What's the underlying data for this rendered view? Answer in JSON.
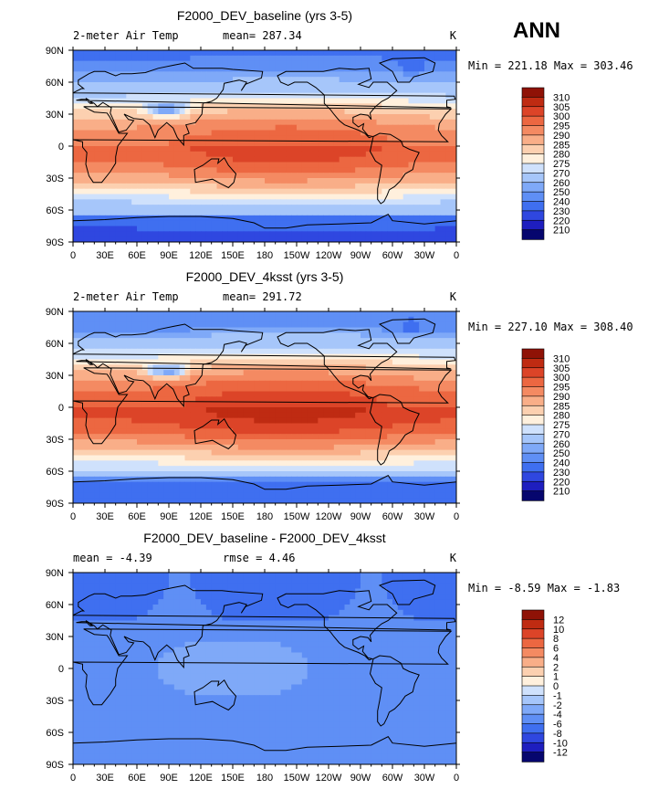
{
  "season": "ANN",
  "panels": [
    {
      "title": "F2000_DEV_baseline (yrs 3-5)",
      "left_label": "2-meter Air Temp",
      "center_label": "mean= 287.34",
      "units": "K",
      "minmax": "Min = 221.18 Max = 303.46",
      "colorbar_ticks": [
        "310",
        "305",
        "300",
        "295",
        "290",
        "285",
        "280",
        "275",
        "270",
        "260",
        "250",
        "240",
        "230",
        "220",
        "210"
      ],
      "field": "baseline"
    },
    {
      "title": "F2000_DEV_4ksst (yrs 3-5)",
      "left_label": "2-meter Air Temp",
      "center_label": "mean= 291.72",
      "units": "K",
      "minmax": "Min = 227.10 Max = 308.40",
      "colorbar_ticks": [
        "310",
        "305",
        "300",
        "295",
        "290",
        "285",
        "280",
        "275",
        "270",
        "260",
        "250",
        "240",
        "230",
        "220",
        "210"
      ],
      "field": "4ksst"
    },
    {
      "title": "F2000_DEV_baseline - F2000_DEV_4ksst",
      "left_label": "mean =   -4.39",
      "center_label": "rmse =    4.46",
      "units": "K",
      "minmax": "Min =   -8.59 Max =   -1.83",
      "colorbar_ticks": [
        "12",
        "10",
        "8",
        "6",
        "4",
        "2",
        "1",
        "0",
        "-1",
        "-2",
        "-4",
        "-6",
        "-8",
        "-10",
        "-12"
      ],
      "field": "diff"
    }
  ],
  "colors": {
    "abs_levels": [
      "#06066e",
      "#1e1ebf",
      "#2f47e0",
      "#3f6ff0",
      "#5f8ff5",
      "#7fa9f8",
      "#a6c6fa",
      "#cfe1fc",
      "#fff0dd",
      "#fcd0b0",
      "#f9ae88",
      "#f48a62",
      "#ec6741",
      "#dc4428",
      "#bf2b12",
      "#8f1206"
    ],
    "diff_levels": [
      "#06066e",
      "#1e1ebf",
      "#2f47e0",
      "#3f6ff0",
      "#5f8ff5",
      "#7fa9f8",
      "#a6c6fa",
      "#cfe1fc",
      "#fff0dd",
      "#fcd0b0",
      "#f9ae88",
      "#f48a62",
      "#ec6741",
      "#dc4428",
      "#bf2b12",
      "#8f1206"
    ],
    "coastline": "#000000"
  },
  "chart_data": {
    "type": "heatmap",
    "title": "2-meter Air Temp (K), annual mean",
    "season": "ANN",
    "x_ticks": [
      "0",
      "30E",
      "60E",
      "90E",
      "120E",
      "150E",
      "180",
      "150W",
      "120W",
      "90W",
      "60W",
      "30W",
      "0"
    ],
    "y_ticks": [
      "90N",
      "60N",
      "30N",
      "0",
      "30S",
      "60S",
      "90S"
    ],
    "xlim": [
      0,
      360
    ],
    "ylim": [
      -90,
      90
    ],
    "series": [
      {
        "name": "F2000_DEV_baseline (yrs 3-5)",
        "mean": 287.34,
        "min": 221.18,
        "max": 303.46,
        "levels": [
          210,
          220,
          230,
          240,
          250,
          260,
          270,
          275,
          280,
          285,
          290,
          295,
          300,
          305,
          310
        ]
      },
      {
        "name": "F2000_DEV_4ksst (yrs 3-5)",
        "mean": 291.72,
        "min": 227.1,
        "max": 308.4,
        "levels": [
          210,
          220,
          230,
          240,
          250,
          260,
          270,
          275,
          280,
          285,
          290,
          295,
          300,
          305,
          310
        ]
      },
      {
        "name": "F2000_DEV_baseline - F2000_DEV_4ksst",
        "mean": -4.39,
        "rmse": 4.46,
        "min": -8.59,
        "max": -1.83,
        "levels": [
          -12,
          -10,
          -8,
          -6,
          -4,
          -2,
          -1,
          0,
          1,
          2,
          4,
          6,
          8,
          10,
          12
        ]
      }
    ]
  }
}
